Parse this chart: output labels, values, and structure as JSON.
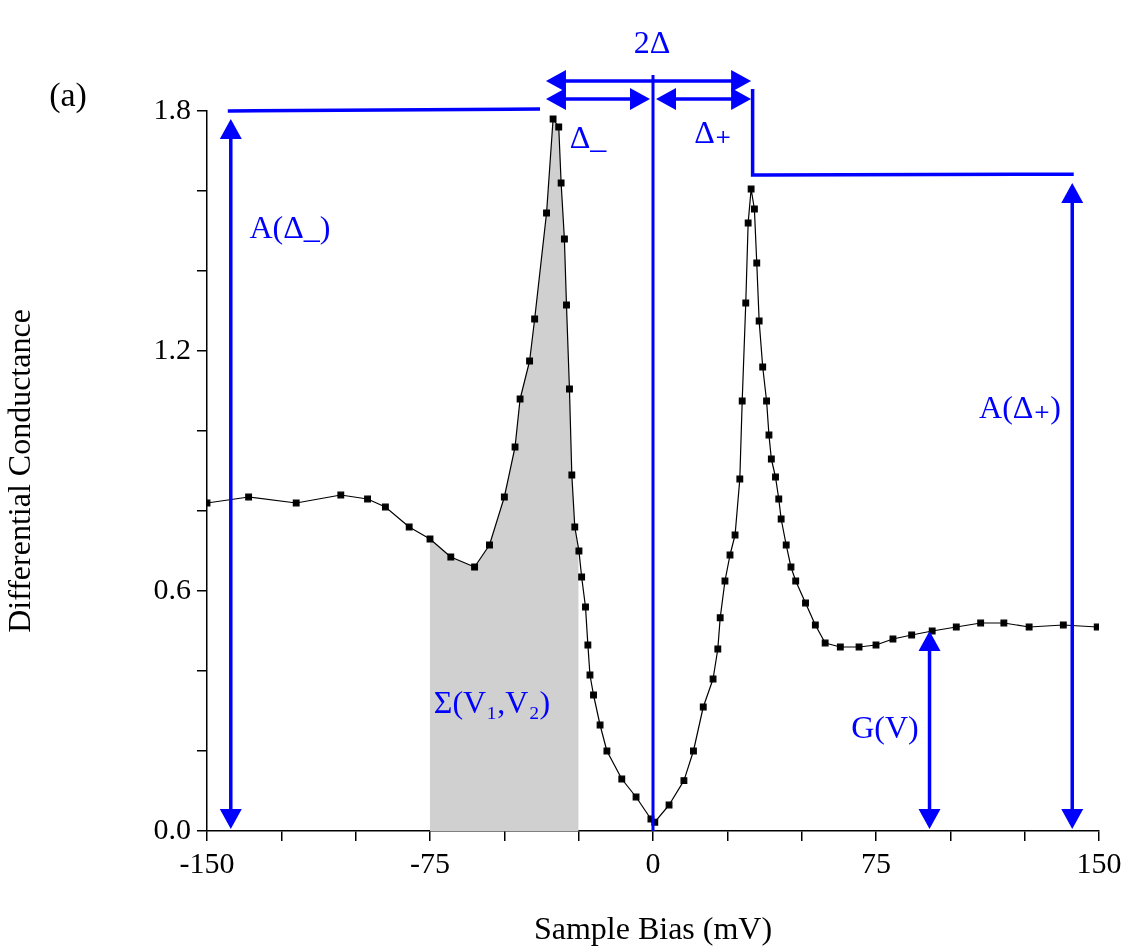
{
  "chart_data": {
    "type": "line",
    "xlabel": "Sample Bias (mV)",
    "ylabel": "Differential Conductance",
    "xlim": [
      -150,
      150
    ],
    "ylim": [
      0,
      1.8
    ],
    "xticks": [
      -150,
      {
        "value": -125,
        "label": null
      },
      {
        "value": -100,
        "label": null
      },
      -75,
      {
        "value": -50,
        "label": null
      },
      {
        "value": -25,
        "label": null
      },
      0,
      {
        "value": 25,
        "label": null
      },
      {
        "value": 50,
        "label": null
      },
      75,
      {
        "value": 100,
        "label": null
      },
      {
        "value": 125,
        "label": null
      },
      150
    ],
    "yticks": [
      {
        "value": 0,
        "label": "0.0"
      },
      {
        "value": 0.2,
        "label": null
      },
      {
        "value": 0.4,
        "label": null
      },
      0.6,
      {
        "value": 0.8,
        "label": null
      },
      {
        "value": 1,
        "label": null
      },
      1.2,
      {
        "value": 1.4,
        "label": null
      },
      {
        "value": 1.6,
        "label": null
      },
      1.8
    ],
    "grid": false,
    "legend": false,
    "marker": "square",
    "line_style": "solid",
    "series": [
      {
        "color": "#000000",
        "x": [
          -150,
          -136,
          -120,
          -105,
          -96,
          -90,
          -82,
          -75,
          -68,
          -60,
          -55,
          -50,
          -46.4,
          -44.7,
          -41.5,
          -39.8,
          -35.8,
          -33.6,
          -31.7,
          -30.9,
          -29.8,
          -29.1,
          -28.1,
          -27.3,
          -26.3,
          -24.9,
          -24,
          -22.7,
          -21.9,
          -21.2,
          -20,
          -17.8,
          -15.5,
          -10.5,
          -5.7,
          -0.7,
          0.6,
          5.4,
          10.4,
          13.6,
          16.9,
          20.2,
          21.8,
          22.6,
          24.2,
          25.9,
          27.6,
          29.2,
          30,
          31.2,
          32,
          33,
          34.1,
          34.9,
          35.7,
          36.9,
          38.2,
          39,
          39.8,
          41.2,
          42.3,
          43.1,
          44.8,
          46.4,
          48,
          51.3,
          54.6,
          57.9,
          63,
          69.3,
          75,
          80.7,
          87,
          93.9,
          102,
          110.2,
          118,
          126.5,
          138,
          149.4
        ],
        "values": [
          0.82,
          0.835,
          0.82,
          0.84,
          0.83,
          0.81,
          0.76,
          0.73,
          0.685,
          0.66,
          0.715,
          0.835,
          0.96,
          1.08,
          1.175,
          1.28,
          1.545,
          1.78,
          1.76,
          1.62,
          1.48,
          1.315,
          1.105,
          0.89,
          0.76,
          0.7,
          0.635,
          0.56,
          0.465,
          0.39,
          0.34,
          0.265,
          0.2,
          0.13,
          0.085,
          0.03,
          0.022,
          0.065,
          0.126,
          0.2,
          0.31,
          0.38,
          0.455,
          0.533,
          0.625,
          0.69,
          0.74,
          0.88,
          1.075,
          1.32,
          1.52,
          1.605,
          1.555,
          1.42,
          1.275,
          1.16,
          1.075,
          0.99,
          0.93,
          0.885,
          0.83,
          0.78,
          0.715,
          0.66,
          0.625,
          0.57,
          0.515,
          0.47,
          0.46,
          0.46,
          0.465,
          0.48,
          0.49,
          0.5,
          0.51,
          0.52,
          0.52,
          0.51,
          0.515,
          0.51
        ]
      },
      {
        "type": "area",
        "color": "#d0d0d0",
        "x": [
          -75,
          -68,
          -60,
          -55,
          -50,
          -46.4,
          -44.7,
          -41.5,
          -39.8,
          -35.8,
          -33.6,
          -31.7,
          -30.9,
          -29.8,
          -29.1,
          -28.1,
          -27.3,
          -26.3,
          -25
        ],
        "values": [
          0.73,
          0.685,
          0.66,
          0.715,
          0.835,
          0.96,
          1.08,
          1.175,
          1.28,
          1.545,
          1.78,
          1.76,
          1.62,
          1.48,
          1.315,
          1.105,
          0.89,
          0.76,
          0.7
        ]
      }
    ],
    "ref_lines": [
      {
        "axis": "x",
        "value": 0,
        "color": "#0000ff",
        "line_style": "solid"
      }
    ],
    "annotations": [
      "(a)",
      "2Δ",
      "A(Δ_)",
      "A(Δ₊)",
      "G(V)",
      "Σ(V₁,V₂)",
      "Δ_",
      "Δ₊"
    ]
  }
}
